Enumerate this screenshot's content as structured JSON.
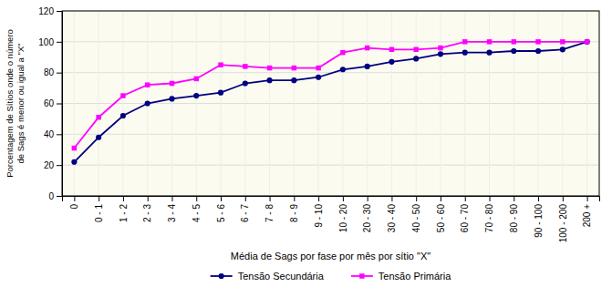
{
  "chart_data": {
    "type": "line",
    "categories": [
      "0",
      "0 - 1",
      "1 - 2",
      "2 - 3",
      "3 - 4",
      "4 - 5",
      "5 - 6",
      "6 - 7",
      "7 - 8",
      "8 - 9",
      "9 - 10",
      "10 - 20",
      "20 - 30",
      "30 - 40",
      "40 - 50",
      "50 - 60",
      "60 - 70",
      "70 - 80",
      "80 - 90",
      "90 - 100",
      "100 - 200",
      "200 +"
    ],
    "series": [
      {
        "name": "Tensão Secundária",
        "color": "#000080",
        "marker": "circle",
        "values": [
          22,
          38,
          52,
          60,
          63,
          65,
          67,
          73,
          75,
          75,
          77,
          82,
          84,
          87,
          89,
          92,
          93,
          93,
          94,
          94,
          95,
          100
        ]
      },
      {
        "name": "Tensão Primária",
        "color": "#FF00FF",
        "marker": "square",
        "values": [
          31,
          51,
          65,
          72,
          73,
          76,
          85,
          84,
          83,
          83,
          83,
          93,
          96,
          95,
          95,
          96,
          100,
          100,
          100,
          100,
          100,
          100
        ]
      }
    ],
    "xlabel": "Média de Sags por fase por mês por sítio \"X\"",
    "ylabel": "Porcentagem de Sítios onde o número\nde Sags é menor ou igual a \"X\"",
    "ylim": [
      0,
      120
    ],
    "yticks": [
      0,
      20,
      40,
      60,
      80,
      100,
      120
    ],
    "grid": true,
    "legend": "bottom"
  }
}
